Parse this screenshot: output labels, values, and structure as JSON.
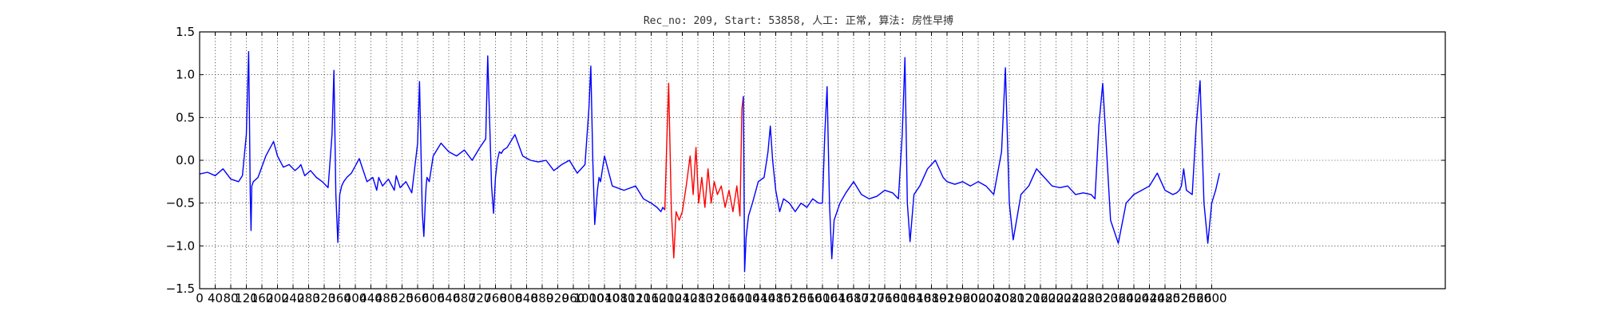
{
  "chart_data": {
    "type": "line",
    "title": "Rec_no: 209, Start: 53858, 人工: 正常, 算法: 房性早搏",
    "xlim": [
      0,
      3200
    ],
    "ylim": [
      -1.5,
      1.5
    ],
    "x_ticks": [
      0,
      40,
      80,
      120,
      160,
      200,
      240,
      280,
      320,
      360,
      400,
      440,
      480,
      520,
      560,
      600,
      640,
      680,
      720,
      760,
      800,
      840,
      880,
      920,
      960,
      1000,
      1040,
      1080,
      1120,
      1160,
      1200,
      1240,
      1280,
      1320,
      1360,
      1400,
      1440,
      1480,
      1520,
      1560,
      1600,
      1640,
      1680,
      1720,
      1760,
      1800,
      1840,
      1880,
      1920,
      1960,
      2000,
      2040,
      2080,
      2120,
      2160,
      2200,
      2240,
      2280,
      2320,
      2360,
      2400,
      2440,
      2480,
      2520,
      2560,
      2600
    ],
    "x_tick_labels": [
      "0",
      "40",
      "80",
      "120",
      "160",
      "200",
      "240",
      "280",
      "320",
      "360",
      "400",
      "440",
      "480",
      "520",
      "560",
      "600",
      "640",
      "680",
      "720",
      "760",
      "800",
      "840",
      "880",
      "920",
      "960",
      "1000",
      "1040",
      "1080",
      "1120",
      "1160",
      "1200",
      "1240",
      "1280",
      "1320",
      "1360",
      "1400",
      "1440",
      "1480",
      "1520",
      "1560",
      "1600",
      "1640",
      "1680",
      "1720",
      "1760",
      "1800",
      "1840",
      "1880",
      "1920",
      "1960",
      "2000",
      "2040",
      "2080",
      "2120",
      "2160",
      "2200",
      "2240",
      "2280",
      "2320",
      "2360",
      "2400",
      "2440",
      "2480",
      "2520",
      "2560",
      "2600"
    ],
    "y_ticks": [
      -1.5,
      -1.0,
      -0.5,
      0.0,
      0.5,
      1.0,
      1.5
    ],
    "y_tick_labels": [
      "−1.5",
      "−1.0",
      "−0.5",
      "0.0",
      "0.5",
      "1.0",
      "1.5"
    ],
    "grid": true,
    "series": [
      {
        "color": "#0000ff",
        "segment": "before",
        "x": [
          0,
          20,
          40,
          60,
          80,
          100,
          110,
          120,
          126,
          128,
          130,
          132,
          134,
          138,
          150,
          170,
          190,
          200,
          215,
          230,
          245,
          255,
          260,
          270,
          285,
          300,
          315,
          330,
          340,
          345,
          350,
          355,
          360,
          365,
          370,
          378,
          390,
          410,
          430,
          445,
          455,
          460,
          470,
          485,
          500,
          505,
          515,
          530,
          545,
          560,
          565,
          572,
          576,
          580,
          582,
          584,
          590,
          600,
          620,
          640,
          660,
          680,
          700,
          720,
          735,
          740,
          750,
          755,
          760,
          765,
          770,
          775,
          780,
          790,
          810,
          830,
          850,
          870,
          890,
          910,
          930,
          950,
          970,
          990,
          1000,
          1005,
          1010,
          1015,
          1022,
          1026,
          1030,
          1040,
          1060,
          1090,
          1120,
          1140,
          1160,
          1175,
          1185,
          1190,
          1195
        ],
        "y": [
          -0.16,
          -0.14,
          -0.18,
          -0.1,
          -0.22,
          -0.25,
          -0.18,
          0.3,
          1.27,
          0.5,
          -0.4,
          -0.82,
          -0.3,
          -0.25,
          -0.2,
          0.05,
          0.22,
          0.05,
          -0.08,
          -0.05,
          -0.12,
          -0.08,
          -0.05,
          -0.18,
          -0.12,
          -0.2,
          -0.25,
          -0.32,
          0.3,
          1.05,
          -0.4,
          -0.96,
          -0.4,
          -0.3,
          -0.25,
          -0.2,
          -0.15,
          0.02,
          -0.25,
          -0.2,
          -0.35,
          -0.2,
          -0.3,
          -0.22,
          -0.35,
          -0.18,
          -0.32,
          -0.25,
          -0.38,
          0.2,
          0.92,
          -0.6,
          -0.89,
          -0.45,
          -0.3,
          -0.2,
          -0.25,
          0.05,
          0.2,
          0.1,
          0.05,
          0.12,
          0.0,
          0.15,
          0.25,
          1.22,
          -0.3,
          -0.62,
          -0.2,
          0.0,
          0.1,
          0.08,
          0.12,
          0.15,
          0.3,
          0.05,
          0.0,
          -0.02,
          0.0,
          -0.12,
          -0.05,
          0.0,
          -0.15,
          -0.05,
          0.6,
          1.1,
          0.0,
          -0.75,
          -0.35,
          -0.2,
          -0.25,
          0.05,
          -0.3,
          -0.35,
          -0.3,
          -0.45,
          -0.5,
          -0.55,
          -0.6,
          -0.55,
          -0.58
        ]
      },
      {
        "color": "#ff0000",
        "segment": "highlight",
        "x": [
          1195,
          1200,
          1205,
          1212,
          1218,
          1224,
          1232,
          1240,
          1250,
          1260,
          1268,
          1275,
          1282,
          1290,
          1298,
          1306,
          1314,
          1322,
          1330,
          1340,
          1350,
          1360,
          1370,
          1380,
          1388,
          1393,
          1397
        ],
        "y": [
          -0.58,
          0.2,
          0.9,
          -0.6,
          -1.14,
          -0.6,
          -0.7,
          -0.6,
          -0.3,
          0.05,
          -0.4,
          0.15,
          -0.5,
          -0.2,
          -0.55,
          -0.1,
          -0.5,
          -0.25,
          -0.4,
          -0.3,
          -0.55,
          -0.35,
          -0.6,
          -0.3,
          -0.65,
          0.6,
          0.75
        ]
      },
      {
        "color": "#0000ff",
        "segment": "after",
        "x": [
          1397,
          1400,
          1404,
          1410,
          1420,
          1435,
          1450,
          1460,
          1466,
          1472,
          1480,
          1490,
          1500,
          1515,
          1530,
          1545,
          1560,
          1575,
          1590,
          1600,
          1606,
          1612,
          1618,
          1624,
          1630,
          1645,
          1660,
          1680,
          1700,
          1720,
          1740,
          1760,
          1780,
          1795,
          1805,
          1812,
          1818,
          1825,
          1835,
          1850,
          1870,
          1890,
          1910,
          1920,
          1940,
          1960,
          1980,
          2000,
          2020,
          2040,
          2060,
          2070,
          2080,
          2090,
          2110,
          2130,
          2150,
          2170,
          2190,
          2210,
          2230,
          2250,
          2270,
          2290,
          2300,
          2310,
          2320,
          2340,
          2360,
          2380,
          2400,
          2420,
          2440,
          2460,
          2480,
          2500,
          2510,
          2517,
          2522,
          2528,
          2535,
          2550,
          2560,
          2570,
          2580,
          2590,
          2600,
          2610,
          2620
        ],
        "y": [
          0.75,
          -1.3,
          -0.9,
          -0.65,
          -0.5,
          -0.25,
          -0.2,
          0.1,
          0.4,
          0.0,
          -0.35,
          -0.6,
          -0.45,
          -0.5,
          -0.6,
          -0.5,
          -0.55,
          -0.45,
          -0.5,
          -0.5,
          0.3,
          0.86,
          -0.5,
          -1.15,
          -0.7,
          -0.5,
          -0.38,
          -0.25,
          -0.4,
          -0.45,
          -0.42,
          -0.35,
          -0.38,
          -0.45,
          0.3,
          1.2,
          -0.5,
          -0.95,
          -0.4,
          -0.3,
          -0.1,
          0.0,
          -0.2,
          -0.25,
          -0.28,
          -0.25,
          -0.3,
          -0.25,
          -0.3,
          -0.4,
          0.1,
          1.08,
          -0.5,
          -0.93,
          -0.4,
          -0.3,
          -0.1,
          -0.2,
          -0.3,
          -0.32,
          -0.3,
          -0.4,
          -0.38,
          -0.4,
          -0.45,
          0.4,
          0.9,
          -0.7,
          -0.97,
          -0.5,
          -0.4,
          -0.35,
          -0.3,
          -0.15,
          -0.35,
          -0.4,
          -0.38,
          -0.35,
          -0.3,
          -0.1,
          -0.35,
          -0.4,
          0.4,
          0.93,
          -0.5,
          -0.97,
          -0.5,
          -0.35,
          -0.15
        ]
      }
    ]
  }
}
